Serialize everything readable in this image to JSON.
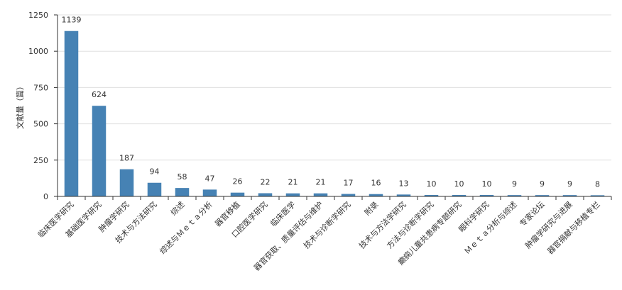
{
  "chart_data": {
    "type": "bar",
    "title": "",
    "xlabel": "",
    "ylabel": "文献量（篇）",
    "ylim": [
      0,
      1250
    ],
    "yticks": [
      0,
      250,
      500,
      750,
      1000,
      1250
    ],
    "grid": true,
    "bar_color": "#4682b4",
    "categories": [
      "临床医学研究",
      "基础医学研究",
      "肿瘤学研究",
      "技术与方法研究",
      "综述",
      "综述与Ｍｅｔａ分析",
      "器官移植",
      "口腔医学研究",
      "临床医学",
      "器官获取、质量评估与维护",
      "技术与诊断学研究",
      "附录",
      "技术与方法学研究",
      "方法与诊断学研究",
      "癫痫儿童共患病专题研究",
      "眼科学研究",
      "Ｍｅｔａ分析与综述",
      "专家论坛",
      "肿瘤学研究与进展",
      "器官捐献与移植专栏"
    ],
    "values": [
      1139,
      624,
      187,
      94,
      58,
      47,
      26,
      22,
      21,
      21,
      17,
      16,
      13,
      10,
      10,
      10,
      9,
      9,
      9,
      8
    ]
  }
}
